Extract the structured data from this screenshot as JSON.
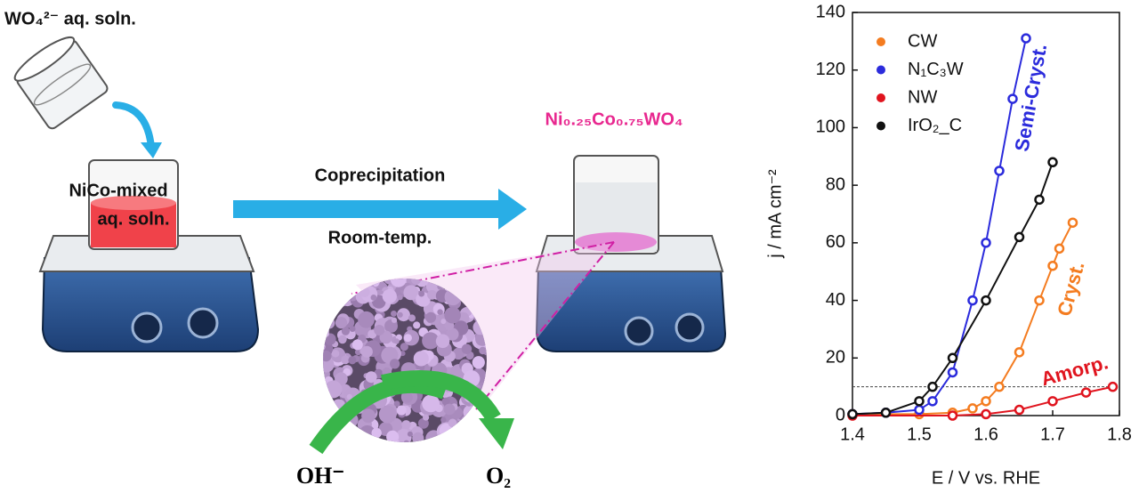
{
  "diagram": {
    "precursor": "WO₄²⁻ aq. soln.",
    "mixed_line1": "NiCo-mixed",
    "mixed_line2": "aq. soln.",
    "process": "Coprecipitation",
    "condition": "Room-temp.",
    "product": "Ni₀.₂₅Co₀.₇₅WO₄",
    "reactant": "OH⁻",
    "output": "O₂"
  },
  "chart_data": {
    "type": "scatter",
    "x_label": "E / V vs. RHE",
    "y_label": "j / mA cm⁻²",
    "xlim": [
      1.4,
      1.8
    ],
    "xticks": [
      1.4,
      1.5,
      1.6,
      1.7,
      1.8
    ],
    "ylim": [
      0,
      140
    ],
    "yticks": [
      0,
      20,
      40,
      60,
      80,
      100,
      120,
      140
    ],
    "reference_line": 10,
    "legend": "upper left",
    "series": [
      {
        "name": "CW",
        "color": "#f47c20",
        "x": [
          1.4,
          1.5,
          1.55,
          1.58,
          1.6,
          1.62,
          1.65,
          1.68,
          1.7,
          1.71,
          1.73
        ],
        "values": [
          0.5,
          0.5,
          1,
          2.5,
          5,
          10,
          22,
          40,
          52,
          58,
          67
        ]
      },
      {
        "name": "N₁C₃W",
        "color": "#2b2bdc",
        "x": [
          1.4,
          1.45,
          1.5,
          1.52,
          1.55,
          1.58,
          1.6,
          1.62,
          1.64,
          1.66
        ],
        "values": [
          0.5,
          1,
          2,
          5,
          15,
          40,
          60,
          85,
          110,
          131
        ]
      },
      {
        "name": "NW",
        "color": "#e0141e",
        "x": [
          1.4,
          1.55,
          1.6,
          1.65,
          1.7,
          1.75,
          1.79
        ],
        "values": [
          0,
          0,
          0.5,
          2,
          5,
          8,
          10
        ]
      },
      {
        "name": "IrO₂_C",
        "color": "#111111",
        "x": [
          1.4,
          1.45,
          1.5,
          1.52,
          1.55,
          1.6,
          1.65,
          1.68,
          1.7
        ],
        "values": [
          0.5,
          1,
          5,
          10,
          20,
          40,
          62,
          75,
          88
        ]
      }
    ],
    "annotations": [
      {
        "text": "Semi-Cryst.",
        "color": "#2b2bdc"
      },
      {
        "text": "Cryst.",
        "color": "#f47c20"
      },
      {
        "text": "Amorp.",
        "color": "#e0141e"
      }
    ]
  }
}
